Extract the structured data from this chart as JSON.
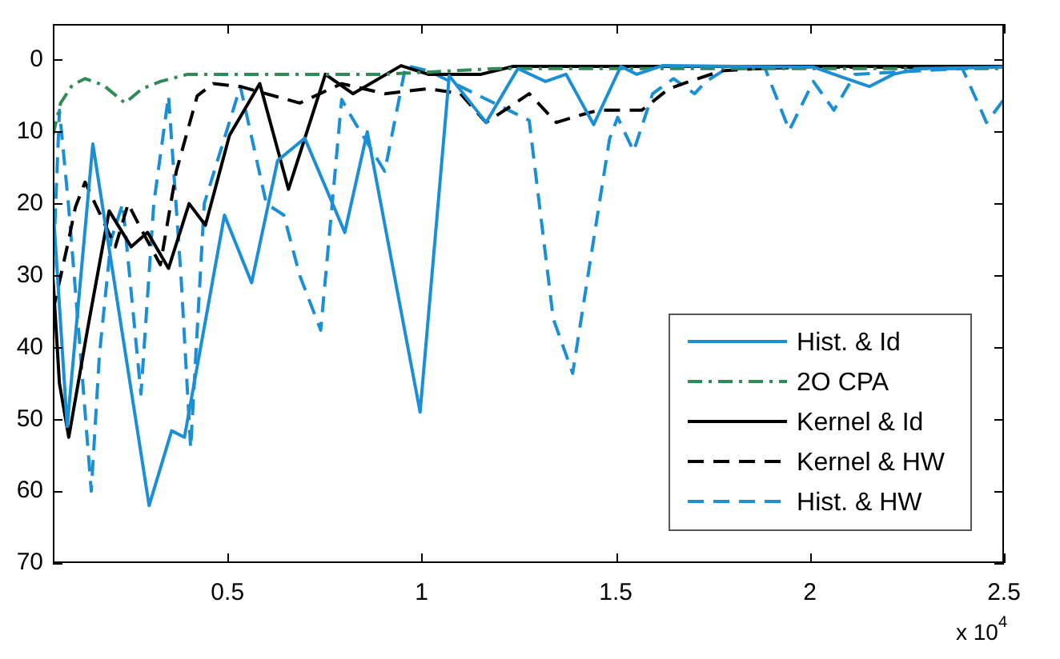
{
  "chart_data": {
    "type": "line",
    "xlim": [
      0.05,
      2.5
    ],
    "xticks": [
      0.5,
      1,
      1.5,
      2,
      2.5
    ],
    "ylim": [
      70,
      -5
    ],
    "yticks": [
      0,
      10,
      20,
      30,
      40,
      50,
      60,
      70
    ],
    "grid": false,
    "legend": "bottom right",
    "marker": "none",
    "annotations": [
      "x 10$^{4}$"
    ],
    "series": [
      {
        "name": "Hist. & Id",
        "color": "#1a8fd6",
        "line_style": "solid",
        "x": [
          0.05,
          0.087,
          0.153,
          0.298,
          0.356,
          0.389,
          0.492,
          0.562,
          0.629,
          0.699,
          0.802,
          0.86,
          0.996,
          1.071,
          1.166,
          1.248,
          1.319,
          1.372,
          1.443,
          1.513,
          1.554,
          1.62,
          2.009,
          2.062,
          2.153,
          2.215,
          2.281,
          2.5
        ],
        "values": [
          20,
          51,
          11.7,
          62,
          51.6,
          52.5,
          21.6,
          31,
          14,
          10.9,
          24,
          10,
          49,
          2.2,
          8.7,
          1.2,
          3,
          2,
          9,
          0.9,
          2,
          0.8,
          1,
          2,
          3.7,
          2,
          1.2,
          1
        ]
      },
      {
        "name": "2O CPA",
        "color": "#2e8b57",
        "line_style": "dashdot",
        "x": [
          0.05,
          0.07,
          0.1,
          0.133,
          0.18,
          0.236,
          0.28,
          0.327,
          0.397,
          0.6,
          0.9,
          1.195,
          1.5,
          2.0,
          2.5
        ],
        "values": [
          10.5,
          6,
          3.5,
          2.6,
          3.5,
          6,
          4,
          3,
          2,
          2,
          2,
          1.2,
          1.2,
          1.2,
          1.2
        ]
      },
      {
        "name": "Kernel & Id",
        "color": "#000000",
        "line_style": "solid",
        "x": [
          0.05,
          0.067,
          0.091,
          0.141,
          0.195,
          0.252,
          0.294,
          0.348,
          0.401,
          0.443,
          0.505,
          0.583,
          0.657,
          0.752,
          0.823,
          0.947,
          1.017,
          1.153,
          1.236,
          1.5,
          2.0,
          2.5
        ],
        "values": [
          30,
          45,
          52.5,
          37,
          21,
          26,
          24,
          29,
          20,
          23,
          10.5,
          3.3,
          18,
          2,
          4.7,
          0.8,
          2,
          2,
          0.9,
          0.9,
          0.9,
          0.9
        ]
      },
      {
        "name": "Kernel & HW",
        "color": "#000000",
        "line_style": "dashed",
        "x": [
          0.05,
          0.091,
          0.108,
          0.133,
          0.211,
          0.244,
          0.277,
          0.327,
          0.368,
          0.422,
          0.463,
          0.533,
          0.686,
          0.794,
          0.905,
          1.017,
          1.1,
          1.166,
          1.236,
          1.277,
          1.347,
          1.414,
          1.455,
          1.567,
          1.637,
          1.69,
          1.773,
          1.868,
          2.0,
          2.5
        ],
        "values": [
          35,
          25,
          20.5,
          17,
          26,
          20,
          23.5,
          28.5,
          15.5,
          5,
          3.3,
          3.7,
          6,
          3.3,
          4.7,
          4,
          4.7,
          8.7,
          6.2,
          4.7,
          8.7,
          7.6,
          7,
          7,
          4,
          3,
          1.5,
          1.2,
          1,
          1
        ]
      },
      {
        "name": "Hist. & HW",
        "color": "#1a8fd6",
        "line_style": "dashed",
        "x": [
          0.05,
          0.067,
          0.09,
          0.12,
          0.149,
          0.17,
          0.2,
          0.23,
          0.277,
          0.31,
          0.348,
          0.38,
          0.405,
          0.44,
          0.533,
          0.6,
          0.645,
          0.686,
          0.74,
          0.794,
          0.82,
          0.905,
          0.959,
          1.017,
          1.277,
          1.339,
          1.389,
          1.443,
          1.484,
          1.505,
          1.546,
          1.595,
          1.649,
          1.703,
          1.732,
          1.786,
          1.885,
          1.947,
          2.009,
          2.062,
          2.116,
          2.393,
          2.455,
          2.5
        ],
        "values": [
          30,
          7,
          20,
          40,
          60,
          41,
          25,
          20,
          46.5,
          20,
          5,
          30,
          54,
          20,
          3.7,
          20,
          21.6,
          30,
          37.6,
          5.5,
          8,
          15.5,
          0.8,
          1.5,
          8.4,
          36,
          43.6,
          25,
          11,
          8,
          12.7,
          4.7,
          2.6,
          4.7,
          3,
          1.2,
          1.2,
          9.8,
          3,
          7,
          2,
          1.2,
          8.7,
          5.5
        ]
      }
    ]
  }
}
